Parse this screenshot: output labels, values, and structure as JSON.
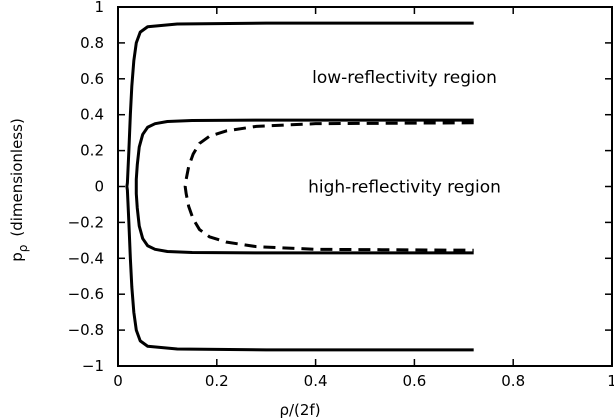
{
  "chart_data": {
    "type": "line",
    "title": "",
    "xlabel": "ρ/(2f)",
    "ylabel_main": "p",
    "ylabel_sub": "ρ",
    "ylabel_rest": "(dimensionless)",
    "xlim": [
      0,
      1
    ],
    "ylim": [
      -1,
      1
    ],
    "grid": false,
    "x_ticks": [
      0,
      0.2,
      0.4,
      0.6,
      0.8,
      1
    ],
    "x_tick_labels": [
      "0",
      "0.2",
      "0.4",
      "0.6",
      "0.8",
      "1"
    ],
    "y_ticks": [
      1,
      0.8,
      0.6,
      0.4,
      0.2,
      0,
      -0.2,
      -0.4,
      -0.6,
      -0.8,
      -1
    ],
    "y_tick_labels": [
      "1",
      "0.8",
      "0.6",
      "0.4",
      "0.2",
      "0",
      "−0.2",
      "−0.4",
      "−0.6",
      "−0.8",
      "−1"
    ],
    "annotations": [
      {
        "text": "low-reflectivity region",
        "x": 0.58,
        "y": 0.61
      },
      {
        "text": "high-reflectivity region",
        "x": 0.58,
        "y": 0.0
      }
    ],
    "series": [
      {
        "style": "solid",
        "x": [
          0.72,
          0.3,
          0.12,
          0.06,
          0.045,
          0.037,
          0.032,
          0.028,
          0.025,
          0.022,
          0.02,
          0.019,
          0.018,
          0.019,
          0.02,
          0.022,
          0.025,
          0.028,
          0.032,
          0.037,
          0.045,
          0.06,
          0.12,
          0.3,
          0.72
        ],
        "y": [
          0.91,
          0.91,
          0.905,
          0.89,
          0.86,
          0.8,
          0.7,
          0.56,
          0.4,
          0.2,
          0.08,
          0.02,
          0,
          -0.02,
          -0.08,
          -0.2,
          -0.4,
          -0.56,
          -0.7,
          -0.8,
          -0.86,
          -0.89,
          -0.905,
          -0.91,
          -0.91
        ]
      },
      {
        "style": "solid",
        "x": [
          0.72,
          0.3,
          0.15,
          0.1,
          0.075,
          0.06,
          0.05,
          0.043,
          0.039,
          0.037,
          0.037,
          0.039,
          0.043,
          0.05,
          0.06,
          0.075,
          0.1,
          0.15,
          0.3,
          0.72
        ],
        "y": [
          0.37,
          0.37,
          0.368,
          0.362,
          0.35,
          0.33,
          0.29,
          0.22,
          0.12,
          0.04,
          -0.04,
          -0.12,
          -0.22,
          -0.29,
          -0.33,
          -0.35,
          -0.362,
          -0.368,
          -0.37,
          -0.37
        ]
      },
      {
        "style": "dashed",
        "x": [
          0.72,
          0.4,
          0.28,
          0.22,
          0.185,
          0.165,
          0.152,
          0.143,
          0.138,
          0.136,
          0.138,
          0.143,
          0.152,
          0.165,
          0.185,
          0.22,
          0.28,
          0.4,
          0.72
        ],
        "y": [
          0.355,
          0.35,
          0.335,
          0.31,
          0.28,
          0.24,
          0.18,
          0.11,
          0.04,
          0,
          -0.04,
          -0.11,
          -0.18,
          -0.24,
          -0.28,
          -0.31,
          -0.335,
          -0.35,
          -0.355
        ]
      }
    ]
  }
}
